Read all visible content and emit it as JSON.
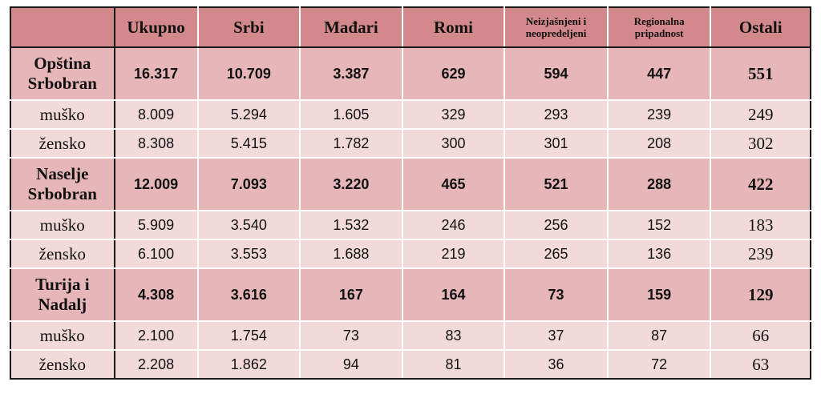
{
  "table": {
    "headers": [
      "",
      "Ukupno",
      "Srbi",
      "Mađari",
      "Romi",
      "Neizjašnjeni i neopredeljeni",
      "Regionalna pripadnost",
      "Ostali"
    ],
    "sections": [
      {
        "label": "Opština Srbobran",
        "total": [
          "16.317",
          "10.709",
          "3.387",
          "629",
          "594",
          "447",
          "551"
        ],
        "rows": [
          {
            "label": "muško",
            "values": [
              "8.009",
              "5.294",
              "1.605",
              "329",
              "293",
              "239",
              "249"
            ]
          },
          {
            "label": "žensko",
            "values": [
              "8.308",
              "5.415",
              "1.782",
              "300",
              "301",
              "208",
              "302"
            ]
          }
        ]
      },
      {
        "label": "Naselje Srbobran",
        "total": [
          "12.009",
          "7.093",
          "3.220",
          "465",
          "521",
          "288",
          "422"
        ],
        "rows": [
          {
            "label": "muško",
            "values": [
              "5.909",
              "3.540",
              "1.532",
              "246",
              "256",
              "152",
              "183"
            ]
          },
          {
            "label": "žensko",
            "values": [
              "6.100",
              "3.553",
              "1.688",
              "219",
              "265",
              "136",
              "239"
            ]
          }
        ]
      },
      {
        "label": "Turija i Nadalj",
        "total": [
          "4.308",
          "3.616",
          "167",
          "164",
          "73",
          "159",
          "129"
        ],
        "rows": [
          {
            "label": "muško",
            "values": [
              "2.100",
              "1.754",
              "73",
              "83",
              "37",
              "87",
              "66"
            ]
          },
          {
            "label": "žensko",
            "values": [
              "2.208",
              "1.862",
              "94",
              "81",
              "36",
              "72",
              "63"
            ]
          }
        ]
      }
    ]
  }
}
